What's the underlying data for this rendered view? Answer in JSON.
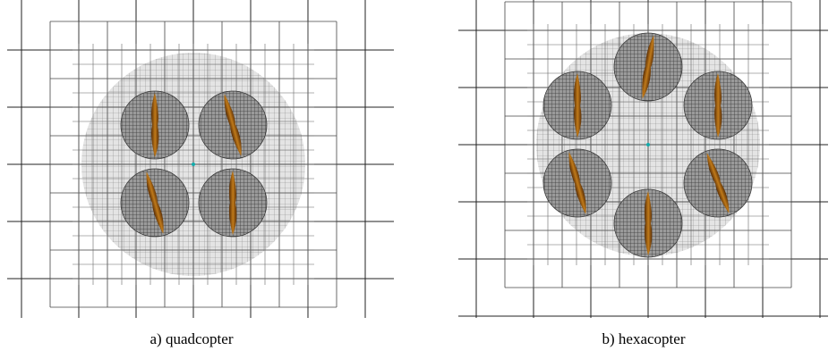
{
  "figure": {
    "panels": [
      {
        "caption": "a) quadcopter"
      },
      {
        "caption": "b) hexacopter"
      }
    ]
  }
}
